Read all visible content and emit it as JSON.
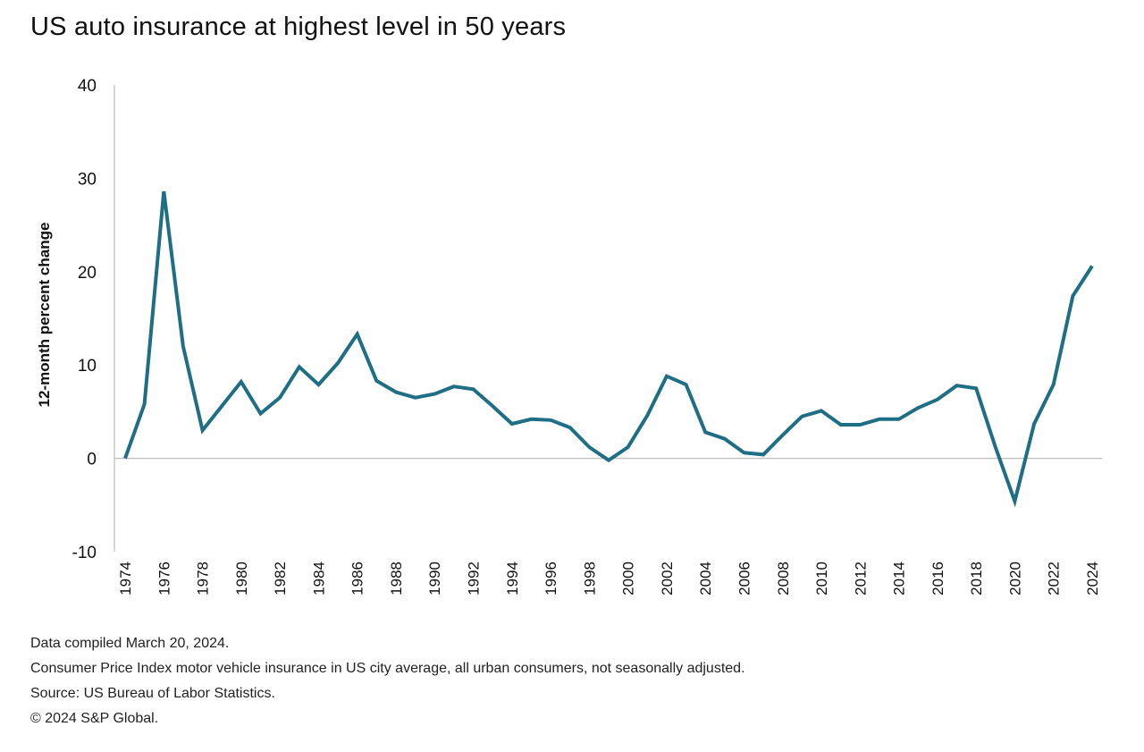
{
  "title": "US auto insurance at highest level in 50 years",
  "notes": [
    "Data compiled March 20, 2024.",
    "Consumer Price Index motor vehicle insurance in US city average, all urban consumers, not seasonally adjusted.",
    "Source: US Bureau of Labor Statistics.",
    "© 2024 S&P Global."
  ],
  "colors": {
    "line": "#1e6e85",
    "axis": "#bdbdbd",
    "text": "#222222"
  },
  "chart_data": {
    "type": "line",
    "title": "US auto insurance at highest level in 50 years",
    "xlabel": "",
    "ylabel": "12-month percent change",
    "ylim": [
      -10,
      40
    ],
    "yticks": [
      -10,
      0,
      10,
      20,
      30,
      40
    ],
    "xticks": [
      1974,
      1976,
      1978,
      1980,
      1982,
      1984,
      1986,
      1988,
      1990,
      1992,
      1994,
      1996,
      1998,
      2000,
      2002,
      2004,
      2006,
      2008,
      2010,
      2012,
      2014,
      2016,
      2018,
      2020,
      2022,
      2024
    ],
    "xlim": [
      1974,
      2024
    ],
    "grid": false,
    "legend": "none",
    "series": [
      {
        "x": [
          1974,
          1975,
          1976,
          1977,
          1978,
          1979,
          1980,
          1981,
          1982,
          1983,
          1984,
          1985,
          1986,
          1987,
          1988,
          1989,
          1990,
          1991,
          1992,
          1993,
          1994,
          1995,
          1996,
          1997,
          1998,
          1999,
          2000,
          2001,
          2002,
          2003,
          2004,
          2005,
          2006,
          2007,
          2008,
          2009,
          2010,
          2011,
          2012,
          2013,
          2014,
          2015,
          2016,
          2017,
          2018,
          2019,
          2020,
          2021,
          2022,
          2023,
          2024
        ],
        "values": [
          0,
          5.8,
          28.6,
          12.0,
          3.0,
          5.6,
          8.2,
          4.8,
          6.5,
          9.8,
          7.9,
          10.2,
          13.3,
          8.3,
          7.1,
          6.5,
          6.9,
          7.7,
          7.4,
          5.6,
          3.7,
          4.2,
          4.1,
          3.3,
          1.2,
          -0.2,
          1.2,
          4.6,
          8.8,
          7.9,
          2.8,
          2.1,
          0.6,
          0.4,
          2.5,
          4.5,
          5.1,
          3.6,
          3.6,
          4.2,
          4.2,
          5.4,
          6.3,
          7.8,
          7.5,
          1.2,
          -4.6,
          3.7,
          7.9,
          17.4,
          20.6
        ]
      }
    ]
  }
}
